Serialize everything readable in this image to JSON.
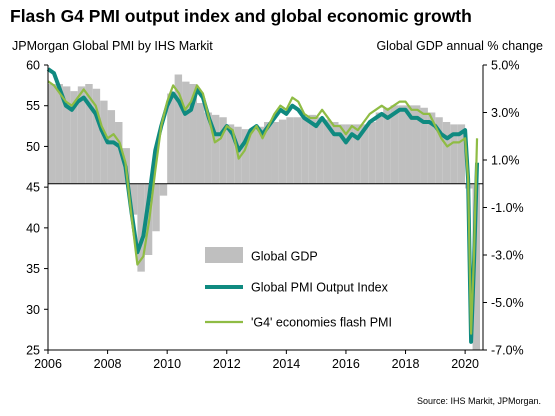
{
  "header": {
    "title": "Flash G4 PMI output index and global economic growth",
    "left_axis_title": "JPMorgan  Global PMI by IHS Markit",
    "right_axis_title": "Global GDP annual % change"
  },
  "footer": {
    "source": "Source: IHS Markit, JPMorgan."
  },
  "chart_data": {
    "type": "bar",
    "title": "Flash G4 PMI output index and global economic growth",
    "x_ticks": [
      "2006",
      "2008",
      "2010",
      "2012",
      "2014",
      "2016",
      "2018",
      "2020"
    ],
    "x_range": [
      2006.0,
      2020.6
    ],
    "y_left": {
      "label": "JPMorgan  Global PMI by IHS Markit",
      "range": [
        25,
        60
      ],
      "ticks": [
        "60",
        "55",
        "50",
        "45",
        "40",
        "35",
        "30",
        "25"
      ],
      "tick_values": [
        60,
        55,
        50,
        45,
        40,
        35,
        30,
        25
      ]
    },
    "y_right": {
      "label": "Global GDP annual % change",
      "range": [
        -7.0,
        5.0
      ],
      "ticks": [
        "5.0%",
        "3.0%",
        "1.0%",
        "-1.0%",
        "-3.0%",
        "-5.0%",
        "-7.0%"
      ],
      "tick_values": [
        5.0,
        3.0,
        1.0,
        -1.0,
        -3.0,
        -5.0,
        -7.0
      ]
    },
    "legend_position": "lower-center",
    "grid": false,
    "series": [
      {
        "name": "Global GDP",
        "type": "bar",
        "axis": "right",
        "color": "#bfbfbf",
        "x": [
          2006.0,
          2006.25,
          2006.5,
          2006.75,
          2007.0,
          2007.25,
          2007.5,
          2007.75,
          2008.0,
          2008.25,
          2008.5,
          2008.75,
          2009.0,
          2009.25,
          2009.5,
          2009.75,
          2010.0,
          2010.25,
          2010.5,
          2010.75,
          2011.0,
          2011.25,
          2011.5,
          2011.75,
          2012.0,
          2012.25,
          2012.5,
          2012.75,
          2013.0,
          2013.25,
          2013.5,
          2013.75,
          2014.0,
          2014.25,
          2014.5,
          2014.75,
          2015.0,
          2015.25,
          2015.5,
          2015.75,
          2016.0,
          2016.25,
          2016.5,
          2016.75,
          2017.0,
          2017.25,
          2017.5,
          2017.75,
          2018.0,
          2018.25,
          2018.5,
          2018.75,
          2019.0,
          2019.25,
          2019.5,
          2019.75,
          2020.0,
          2020.25
        ],
        "values": [
          4.2,
          4.2,
          4.1,
          3.9,
          4.1,
          4.2,
          4.0,
          3.5,
          3.1,
          2.6,
          1.5,
          -1.3,
          -3.7,
          -3.0,
          -2.0,
          -0.5,
          3.8,
          4.6,
          4.3,
          4.2,
          3.4,
          3.0,
          2.9,
          2.8,
          2.5,
          2.4,
          2.3,
          2.3,
          2.4,
          2.6,
          2.6,
          2.7,
          2.8,
          2.8,
          2.8,
          2.9,
          2.8,
          2.7,
          2.6,
          2.5,
          2.5,
          2.5,
          2.5,
          2.6,
          3.0,
          3.2,
          3.3,
          3.3,
          3.3,
          3.3,
          3.2,
          3.0,
          2.8,
          2.6,
          2.5,
          2.5,
          -0.2,
          -7.0
        ]
      },
      {
        "name": "Global PMI Output Index",
        "type": "line",
        "axis": "left",
        "color": "#0f8a80",
        "x": [
          2006.0,
          2006.2,
          2006.4,
          2006.6,
          2006.8,
          2007.0,
          2007.2,
          2007.4,
          2007.6,
          2007.8,
          2008.0,
          2008.2,
          2008.4,
          2008.6,
          2008.8,
          2009.0,
          2009.2,
          2009.4,
          2009.6,
          2009.8,
          2010.0,
          2010.2,
          2010.4,
          2010.6,
          2010.8,
          2011.0,
          2011.2,
          2011.4,
          2011.6,
          2011.8,
          2012.0,
          2012.2,
          2012.4,
          2012.6,
          2012.8,
          2013.0,
          2013.2,
          2013.4,
          2013.6,
          2013.8,
          2014.0,
          2014.2,
          2014.4,
          2014.6,
          2014.8,
          2015.0,
          2015.2,
          2015.4,
          2015.6,
          2015.8,
          2016.0,
          2016.2,
          2016.4,
          2016.6,
          2016.8,
          2017.0,
          2017.2,
          2017.4,
          2017.6,
          2017.8,
          2018.0,
          2018.2,
          2018.4,
          2018.6,
          2018.8,
          2019.0,
          2019.2,
          2019.4,
          2019.6,
          2019.8,
          2020.0,
          2020.1,
          2020.2,
          2020.3,
          2020.4
        ],
        "values": [
          59.5,
          59.0,
          57.0,
          55.0,
          54.5,
          55.5,
          56.0,
          55.0,
          54.0,
          52.0,
          50.5,
          50.5,
          50.0,
          47.5,
          42.0,
          37.0,
          39.0,
          44.0,
          49.5,
          52.5,
          55.0,
          56.5,
          55.5,
          54.0,
          54.5,
          57.0,
          56.0,
          53.5,
          51.5,
          51.5,
          52.5,
          51.5,
          49.5,
          50.5,
          52.0,
          52.5,
          51.5,
          52.5,
          53.5,
          54.5,
          54.0,
          55.0,
          54.5,
          53.5,
          53.0,
          52.5,
          53.5,
          52.5,
          51.5,
          51.5,
          50.5,
          51.5,
          51.0,
          52.0,
          53.0,
          53.5,
          54.0,
          53.5,
          54.0,
          54.5,
          54.5,
          53.5,
          53.5,
          53.0,
          53.0,
          52.5,
          51.5,
          51.0,
          51.5,
          51.5,
          52.0,
          46.0,
          26.0,
          36.0,
          48.0
        ]
      },
      {
        "name": "'G4' economies flash PMI",
        "type": "line",
        "axis": "left",
        "color": "#8fbc44",
        "x": [
          2006.0,
          2006.2,
          2006.4,
          2006.6,
          2006.8,
          2007.0,
          2007.2,
          2007.4,
          2007.6,
          2007.8,
          2008.0,
          2008.2,
          2008.4,
          2008.6,
          2008.8,
          2009.0,
          2009.2,
          2009.4,
          2009.6,
          2009.8,
          2010.0,
          2010.2,
          2010.4,
          2010.6,
          2010.8,
          2011.0,
          2011.2,
          2011.4,
          2011.6,
          2011.8,
          2012.0,
          2012.2,
          2012.4,
          2012.6,
          2012.8,
          2013.0,
          2013.2,
          2013.4,
          2013.6,
          2013.8,
          2014.0,
          2014.2,
          2014.4,
          2014.6,
          2014.8,
          2015.0,
          2015.2,
          2015.4,
          2015.6,
          2015.8,
          2016.0,
          2016.2,
          2016.4,
          2016.6,
          2016.8,
          2017.0,
          2017.2,
          2017.4,
          2017.6,
          2017.8,
          2018.0,
          2018.2,
          2018.4,
          2018.6,
          2018.8,
          2019.0,
          2019.2,
          2019.4,
          2019.6,
          2019.8,
          2020.0,
          2020.1,
          2020.2,
          2020.3,
          2020.4
        ],
        "values": [
          58.0,
          57.5,
          56.5,
          55.5,
          55.0,
          56.0,
          57.0,
          56.0,
          55.0,
          52.5,
          51.0,
          51.5,
          50.5,
          48.0,
          41.5,
          35.5,
          36.5,
          41.0,
          47.0,
          52.5,
          55.5,
          57.5,
          56.5,
          54.5,
          55.5,
          57.5,
          56.5,
          53.5,
          50.5,
          51.0,
          52.5,
          52.0,
          48.5,
          49.5,
          51.5,
          52.5,
          51.0,
          52.5,
          54.0,
          55.0,
          54.5,
          56.0,
          55.5,
          54.0,
          53.5,
          53.5,
          54.5,
          53.5,
          52.5,
          52.5,
          51.5,
          52.5,
          52.0,
          53.0,
          54.0,
          54.5,
          55.0,
          54.5,
          55.0,
          55.5,
          55.5,
          54.5,
          54.5,
          54.0,
          54.0,
          52.5,
          51.0,
          50.0,
          50.5,
          50.5,
          51.0,
          46.0,
          27.0,
          37.0,
          51.0
        ]
      }
    ]
  }
}
